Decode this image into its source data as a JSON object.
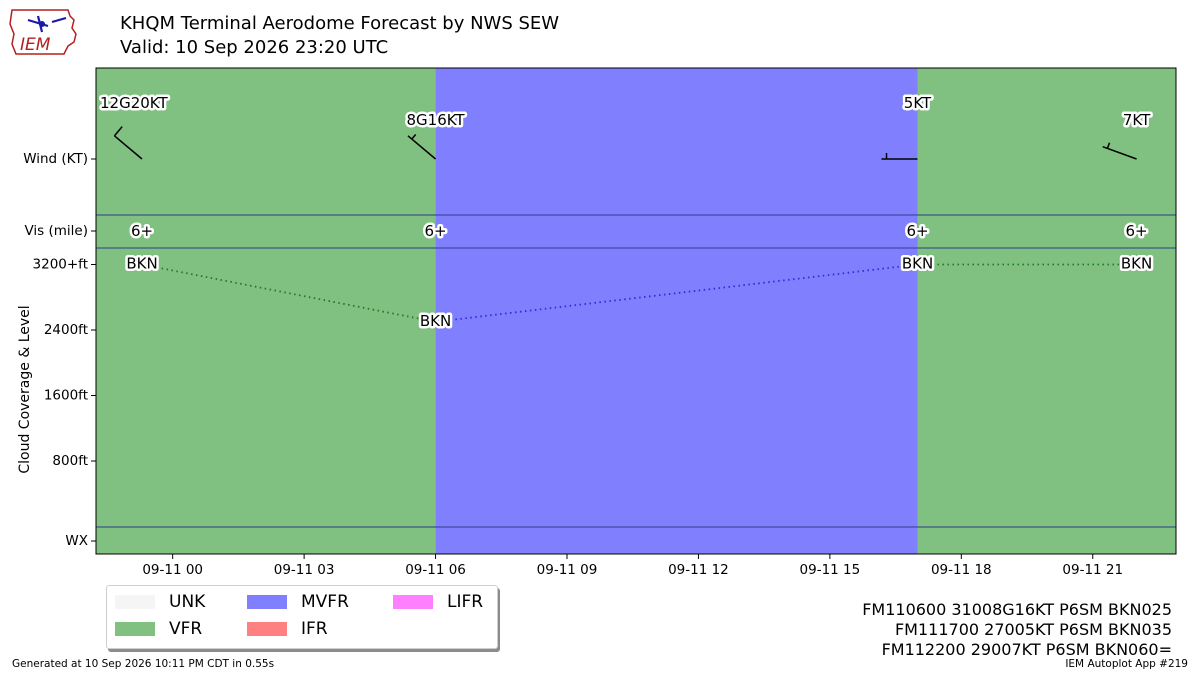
{
  "header": {
    "title_line1": "KHQM Terminal Aerodome Forecast by NWS SEW",
    "title_line2": "Valid: 10 Sep 2026 23:20 UTC",
    "logo_text": "IEM"
  },
  "chart_data": {
    "type": "timeline",
    "x_ticks": [
      "09-11 00",
      "09-11 03",
      "09-11 06",
      "09-11 09",
      "09-11 12",
      "09-11 15",
      "09-11 18",
      "09-11 21"
    ],
    "x_range_hours": [
      -1.75,
      22.9
    ],
    "y_rows": {
      "wind_label": "Wind (KT)",
      "vis_label": "Vis (mile)",
      "wx_label": "WX",
      "cloud_axis_label": "Cloud Coverage & Level",
      "cloud_ticks": [
        {
          "label": "3200+ft",
          "value": 3200
        },
        {
          "label": "2400ft",
          "value": 2400
        },
        {
          "label": "1600ft",
          "value": 1600
        },
        {
          "label": "800ft",
          "value": 800
        }
      ]
    },
    "flight_categories": [
      {
        "start_hour": -1.75,
        "end_hour": 6,
        "category": "VFR"
      },
      {
        "start_hour": 6,
        "end_hour": 17,
        "category": "MVFR"
      },
      {
        "start_hour": 17,
        "end_hour": 22.9,
        "category": "VFR"
      }
    ],
    "category_colors": {
      "UNK": "#f5f5f5",
      "VFR": "#80c080",
      "MVFR": "#8080ff",
      "IFR": "#ff8080",
      "LIFR": "#ff80ff"
    },
    "wind": [
      {
        "hour": -0.7,
        "label": "12G20KT",
        "direction": 310,
        "speed": 12
      },
      {
        "hour": 6,
        "label": "8G16KT",
        "direction": 310,
        "speed": 8
      },
      {
        "hour": 17,
        "label": "5KT",
        "direction": 270,
        "speed": 5
      },
      {
        "hour": 22,
        "label": "7KT",
        "direction": 290,
        "speed": 7
      }
    ],
    "visibility": [
      {
        "hour": -0.7,
        "label": "6+"
      },
      {
        "hour": 6,
        "label": "6+"
      },
      {
        "hour": 17,
        "label": "6+"
      },
      {
        "hour": 22,
        "label": "6+"
      }
    ],
    "clouds": [
      {
        "hour": -0.7,
        "coverage": "BKN",
        "level": 3200
      },
      {
        "hour": 6,
        "coverage": "BKN",
        "level": 2500
      },
      {
        "hour": 17,
        "coverage": "BKN",
        "level": 3200
      },
      {
        "hour": 22,
        "coverage": "BKN",
        "level": 3200
      }
    ],
    "cloud_segment_colors": [
      "#1f7a1f",
      "#2b2bd9",
      "#1f7a1f"
    ]
  },
  "legend": [
    {
      "label": "UNK",
      "color": "#f5f5f5"
    },
    {
      "label": "MVFR",
      "color": "#8080ff"
    },
    {
      "label": "LIFR",
      "color": "#ff80ff"
    },
    {
      "label": "VFR",
      "color": "#80c080"
    },
    {
      "label": "IFR",
      "color": "#ff8080"
    }
  ],
  "taf_text": [
    "FM110600 31008G16KT P6SM BKN025",
    "FM111700 27005KT P6SM BKN035",
    "FM112200 29007KT P6SM BKN060="
  ],
  "footer": {
    "generated": "Generated at 10 Sep 2026 10:11 PM CDT in 0.55s",
    "app": "IEM Autoplot App #219"
  }
}
